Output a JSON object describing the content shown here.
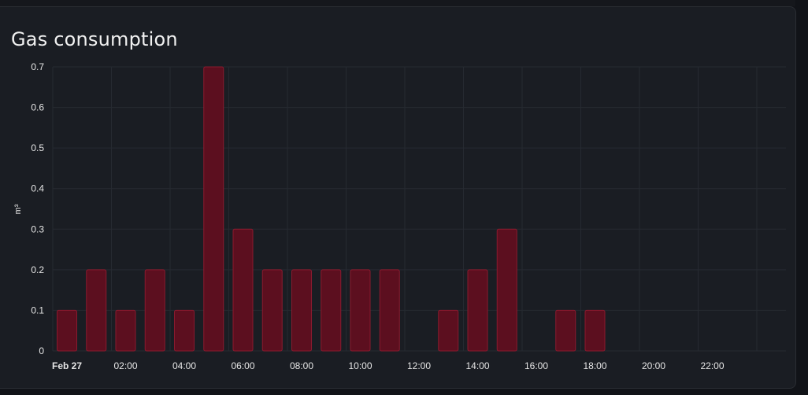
{
  "card": {
    "title": "Gas consumption"
  },
  "chart_data": {
    "type": "bar",
    "title": "Gas consumption",
    "xlabel": "",
    "ylabel": "m³",
    "ylim": [
      0,
      0.7
    ],
    "yticks": [
      "0",
      "0.1",
      "0.2",
      "0.3",
      "0.4",
      "0.5",
      "0.6",
      "0.7"
    ],
    "xticks": [
      "Feb 27",
      "02:00",
      "04:00",
      "06:00",
      "08:00",
      "10:00",
      "12:00",
      "14:00",
      "16:00",
      "18:00",
      "20:00",
      "22:00"
    ],
    "bold_xtick": "Feb 27",
    "grid": true,
    "bar_color": "#5c0f1f",
    "bar_edge_color": "#8a1a2e",
    "grid_color": "#262a31",
    "categories": [
      "00:00",
      "01:00",
      "02:00",
      "03:00",
      "04:00",
      "05:00",
      "06:00",
      "07:00",
      "08:00",
      "09:00",
      "10:00",
      "11:00",
      "12:00",
      "13:00",
      "14:00",
      "15:00",
      "16:00",
      "17:00",
      "18:00",
      "19:00",
      "20:00",
      "21:00",
      "22:00",
      "23:00"
    ],
    "values": [
      0.1,
      0.2,
      0.1,
      0.2,
      0.1,
      0.7,
      0.3,
      0.2,
      0.2,
      0.2,
      0.2,
      0.2,
      0,
      0.1,
      0.2,
      0.3,
      0,
      0.1,
      0.1,
      0,
      0,
      0,
      0,
      0
    ]
  }
}
